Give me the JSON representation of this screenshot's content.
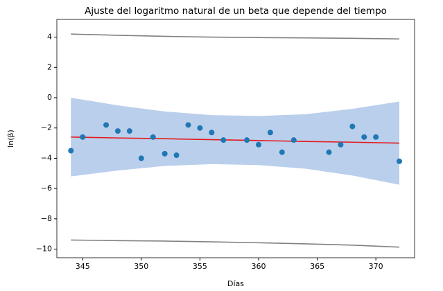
{
  "chart_data": {
    "type": "scatter",
    "title": "Ajuste del logaritmo natural de un beta que depende del tiempo",
    "xlabel": "Días",
    "ylabel": "ln(β)",
    "x": [
      344,
      345,
      347,
      348,
      349,
      350,
      351,
      352,
      353,
      354,
      355,
      356,
      357,
      359,
      360,
      361,
      362,
      363,
      366,
      367,
      368,
      369,
      370,
      372
    ],
    "values": [
      -3.5,
      -2.6,
      -1.8,
      -2.2,
      -2.2,
      -4.0,
      -2.6,
      -3.7,
      -3.8,
      -1.8,
      -2.0,
      -2.3,
      -2.8,
      -2.8,
      -3.1,
      -2.3,
      -3.6,
      -2.8,
      -3.6,
      -3.1,
      -1.9,
      -2.6,
      -2.6,
      -4.2
    ],
    "color": "#1f77b4",
    "curve_x": [
      344,
      348,
      352,
      356,
      360,
      364,
      368,
      372
    ],
    "lines": [
      {
        "color": "#e41a1c",
        "values": [
          -2.6,
          -2.66,
          -2.71,
          -2.77,
          -2.83,
          -2.89,
          -2.94,
          -3.0
        ]
      },
      {
        "color": "#808080",
        "values": [
          4.2,
          4.12,
          4.05,
          4.0,
          3.97,
          3.95,
          3.92,
          3.88
        ]
      },
      {
        "color": "#808080",
        "values": [
          -9.4,
          -9.44,
          -9.47,
          -9.52,
          -9.58,
          -9.65,
          -9.74,
          -9.87
        ]
      }
    ],
    "band": {
      "color": "#aec7e8",
      "upper": [
        0.0,
        -0.51,
        -0.91,
        -1.15,
        -1.21,
        -1.09,
        -0.74,
        -0.25
      ],
      "lower": [
        -5.2,
        -4.81,
        -4.51,
        -4.39,
        -4.45,
        -4.69,
        -5.14,
        -5.75
      ]
    },
    "xlim": [
      342.8,
      373.3
    ],
    "ylim": [
      -10.57,
      5.17
    ],
    "xticks": [
      345,
      350,
      355,
      360,
      365,
      370
    ],
    "yticks": [
      {
        "value": -10,
        "label": "−10"
      },
      {
        "value": -8,
        "label": "−8"
      },
      {
        "value": -6,
        "label": "−6"
      },
      {
        "value": -4,
        "label": "−4"
      },
      {
        "value": -2,
        "label": "−2"
      },
      0,
      2,
      4
    ],
    "grid": false
  }
}
